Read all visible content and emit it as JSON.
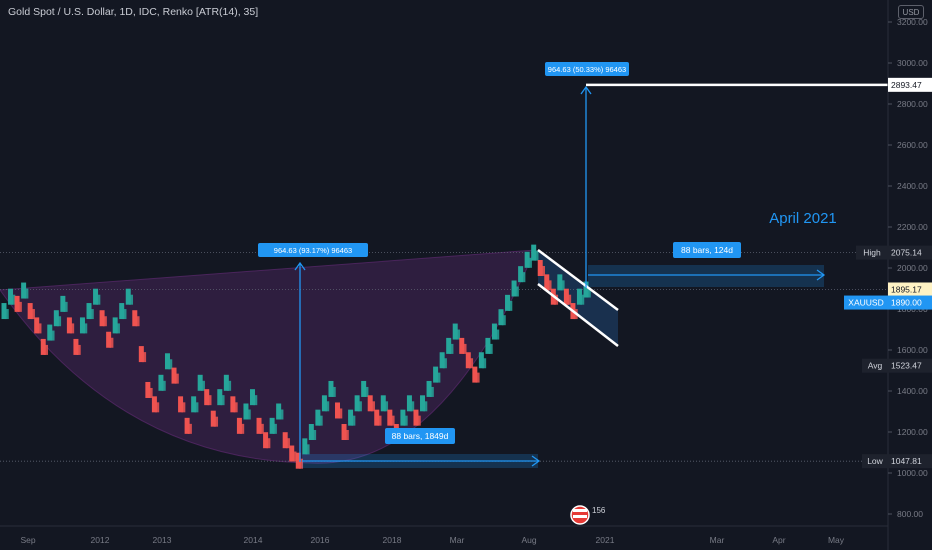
{
  "header": {
    "title": "Gold Spot / U.S. Dollar, 1D, IDC, Renko [ATR(14), 35]",
    "currency": "USD"
  },
  "colors": {
    "background": "#131722",
    "up": "#26a69a",
    "down": "#ef5350",
    "measure_blue": "#2196f3",
    "cup_fill": "#5b2a6e",
    "channel_fill": "#1c3a5e",
    "axis_text": "#787b86"
  },
  "chart_data": {
    "type": "renko",
    "symbol": "XAUUSD",
    "ylim": [
      760,
      3250
    ],
    "y_ticks": [
      800,
      1000,
      1200,
      1400,
      1600,
      1800,
      2000,
      2200,
      2400,
      2600,
      2800,
      3000,
      3200
    ],
    "x_ticks": [
      "Sep",
      "2012",
      "2013",
      "2014",
      "2016",
      "2018",
      "Mar",
      "Aug",
      "2021",
      "Mar",
      "Apr",
      "May"
    ],
    "prices": [
      1790,
      1860,
      1825,
      1890,
      1790,
      1720,
      1615,
      1685,
      1755,
      1825,
      1720,
      1615,
      1720,
      1790,
      1860,
      1755,
      1650,
      1720,
      1790,
      1860,
      1755,
      1580,
      1405,
      1335,
      1440,
      1545,
      1475,
      1335,
      1230,
      1335,
      1440,
      1370,
      1265,
      1370,
      1440,
      1335,
      1230,
      1300,
      1370,
      1230,
      1160,
      1230,
      1300,
      1160,
      1095,
      1060,
      1130,
      1200,
      1270,
      1340,
      1410,
      1305,
      1200,
      1270,
      1340,
      1410,
      1340,
      1270,
      1340,
      1270,
      1200,
      1270,
      1340,
      1270,
      1340,
      1410,
      1480,
      1550,
      1620,
      1690,
      1620,
      1550,
      1480,
      1550,
      1620,
      1690,
      1760,
      1830,
      1900,
      1970,
      2040,
      2075,
      2000,
      1930,
      1860,
      1930,
      1860,
      1790,
      1860,
      1895
    ],
    "price_labels": [
      {
        "label": "High",
        "value": 2075.14,
        "text": "2075.14"
      },
      {
        "label": "",
        "value": 1895.17,
        "text": "1895.17"
      },
      {
        "label": "XAUUSD",
        "value": 1890.0,
        "text": "1890.00"
      },
      {
        "label": "Avg",
        "value": 1523.47,
        "text": "1523.47"
      },
      {
        "label": "Low",
        "value": 1047.81,
        "text": "1047.81"
      },
      {
        "label": "",
        "value": 2893.47,
        "text": "2893.47"
      }
    ],
    "annotations": {
      "cup_measure": "964.63 (93.17%) 96463",
      "cup_bars": "88 bars, 1849d",
      "target_measure": "964.63 (50.33%) 96463",
      "target_bars": "88 bars, 124d",
      "target_date": "April 2021",
      "target_price": 2893.47
    },
    "grid": false,
    "legend": "none"
  },
  "footer": {
    "badge": "156"
  }
}
